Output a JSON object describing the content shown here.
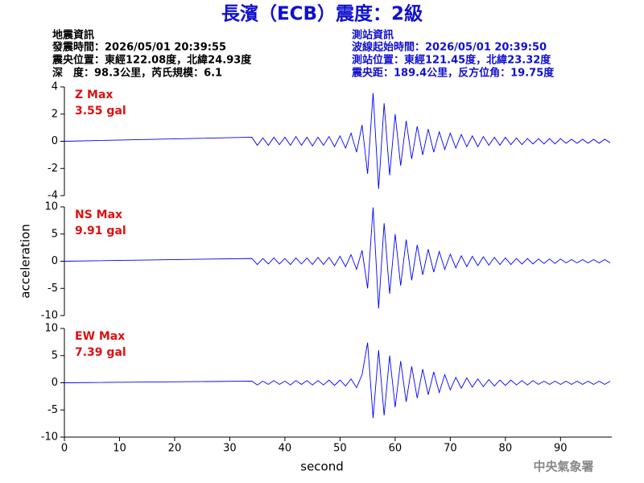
{
  "header": {
    "title": "長濱（ECB）震度：2級",
    "quake": [
      "地震資訊",
      "發震時間：2026/05/01 20:39:55",
      "震央位置：東經122.08度，北緯24.93度",
      "深　度：98.3公里，芮氏規模：6.1"
    ],
    "station": [
      "測站資訊",
      "波線起始時間：2026/05/01 20:39:50",
      "測站位置：東經121.45度，北緯23.32度",
      "震央距：189.4公里，反方位角：19.75度"
    ],
    "footer": "中央氣象署"
  },
  "chart_data": [
    {
      "type": "line",
      "annotation": [
        "Z Max",
        "3.55 gal"
      ],
      "color": "#0000ff",
      "x": [
        0,
        34,
        35,
        36,
        37,
        38,
        39,
        40,
        41,
        42,
        43,
        44,
        45,
        46,
        47,
        48,
        49,
        50,
        51,
        52,
        53,
        54,
        55,
        56,
        57,
        58,
        59,
        60,
        61,
        62,
        63,
        64,
        65,
        66,
        67,
        68,
        69,
        70,
        71,
        72,
        73,
        74,
        75,
        76,
        77,
        78,
        79,
        80,
        81,
        82,
        83,
        84,
        85,
        86,
        87,
        88,
        89,
        90,
        91,
        92,
        93,
        94,
        95,
        96,
        97,
        98,
        99
      ],
      "values": [
        0,
        0.3,
        -0.3,
        0.25,
        -0.3,
        0.3,
        -0.25,
        0.3,
        -0.3,
        0.35,
        -0.3,
        0.3,
        -0.35,
        0.3,
        -0.3,
        0.35,
        -0.4,
        0.4,
        -0.5,
        0.6,
        -0.8,
        1.2,
        -2.4,
        3.55,
        -3.5,
        2.8,
        -2.5,
        2,
        -1.8,
        1.5,
        -1.3,
        1.1,
        -1,
        0.9,
        -0.8,
        0.7,
        -0.6,
        0.6,
        -0.5,
        0.5,
        -0.4,
        0.4,
        -0.4,
        0.35,
        -0.3,
        0.3,
        -0.3,
        0.3,
        -0.25,
        0.25,
        -0.25,
        0.2,
        -0.2,
        0.2,
        -0.2,
        0.2,
        -0.2,
        0.2,
        -0.15,
        0.15,
        -0.15,
        0.15,
        -0.15,
        0.15,
        -0.15,
        0.15,
        -0.1
      ],
      "xlim": [
        0,
        99.3
      ],
      "ylim": [
        -4,
        4
      ],
      "yticks": [
        -4,
        -2,
        0,
        2,
        4
      ]
    },
    {
      "type": "line",
      "annotation": [
        "NS Max",
        "9.91 gal"
      ],
      "color": "#0000ff",
      "y_label": "acceleration",
      "x": [
        0,
        34,
        35,
        36,
        37,
        38,
        39,
        40,
        41,
        42,
        43,
        44,
        45,
        46,
        47,
        48,
        49,
        50,
        51,
        52,
        53,
        54,
        55,
        56,
        57,
        58,
        59,
        60,
        61,
        62,
        63,
        64,
        65,
        66,
        67,
        68,
        69,
        70,
        71,
        72,
        73,
        74,
        75,
        76,
        77,
        78,
        79,
        80,
        81,
        82,
        83,
        84,
        85,
        86,
        87,
        88,
        89,
        90,
        91,
        92,
        93,
        94,
        95,
        96,
        97,
        98,
        99
      ],
      "values": [
        0,
        0.5,
        -0.6,
        0.5,
        -0.5,
        0.6,
        -0.5,
        0.5,
        -0.6,
        0.6,
        -0.5,
        0.6,
        -0.6,
        0.7,
        -0.6,
        0.7,
        -0.8,
        0.9,
        -1,
        1.2,
        -1.5,
        2,
        -5,
        9.91,
        -8.7,
        7,
        -6,
        5,
        -4.5,
        4,
        -3.5,
        3,
        -2.5,
        2.2,
        -2,
        1.8,
        -1.5,
        1.3,
        -1.2,
        1,
        -1,
        0.9,
        -0.8,
        0.8,
        -0.7,
        0.7,
        -0.6,
        0.6,
        -0.6,
        0.5,
        -0.5,
        0.5,
        -0.5,
        0.4,
        -0.4,
        0.4,
        -0.4,
        0.4,
        -0.3,
        0.3,
        -0.3,
        0.3,
        -0.3,
        0.3,
        -0.3,
        0.3,
        -0.3
      ],
      "xlim": [
        0,
        99.3
      ],
      "ylim": [
        -10,
        10
      ],
      "yticks": [
        -10,
        -5,
        0,
        5,
        10
      ]
    },
    {
      "type": "line",
      "annotation": [
        "EW Max",
        "7.39 gal"
      ],
      "color": "#0000ff",
      "x_label": "second",
      "x": [
        0,
        34,
        35,
        36,
        37,
        38,
        39,
        40,
        41,
        42,
        43,
        44,
        45,
        46,
        47,
        48,
        49,
        50,
        51,
        52,
        53,
        54,
        55,
        56,
        57,
        58,
        59,
        60,
        61,
        62,
        63,
        64,
        65,
        66,
        67,
        68,
        69,
        70,
        71,
        72,
        73,
        74,
        75,
        76,
        77,
        78,
        79,
        80,
        81,
        82,
        83,
        84,
        85,
        86,
        87,
        88,
        89,
        90,
        91,
        92,
        93,
        94,
        95,
        96,
        97,
        98,
        99
      ],
      "values": [
        0,
        0.3,
        -0.4,
        0.3,
        -0.3,
        0.4,
        -0.3,
        0.3,
        -0.4,
        0.4,
        -0.3,
        0.4,
        -0.4,
        0.4,
        -0.4,
        0.5,
        -0.5,
        0.5,
        -0.6,
        0.7,
        -0.9,
        1.5,
        7.39,
        -6.5,
        6,
        -6,
        5,
        -4.5,
        4,
        -3.5,
        3,
        -2.8,
        2.5,
        -2.2,
        2,
        -1.8,
        1.5,
        -1.3,
        1,
        -1,
        0.9,
        -0.8,
        0.7,
        -0.7,
        0.6,
        -0.6,
        0.5,
        -0.5,
        0.5,
        -0.4,
        0.4,
        -0.4,
        0.4,
        -0.3,
        0.3,
        -0.3,
        0.3,
        -0.3,
        0.3,
        -0.3,
        0.3,
        -0.3,
        0.3,
        -0.3,
        0.3,
        -0.3,
        0.3
      ],
      "xlim": [
        0,
        99.3
      ],
      "ylim": [
        -10,
        10
      ],
      "yticks": [
        -10,
        -5,
        0,
        5,
        10
      ],
      "xticks": [
        0,
        10,
        20,
        30,
        40,
        50,
        60,
        70,
        80,
        90
      ]
    }
  ]
}
